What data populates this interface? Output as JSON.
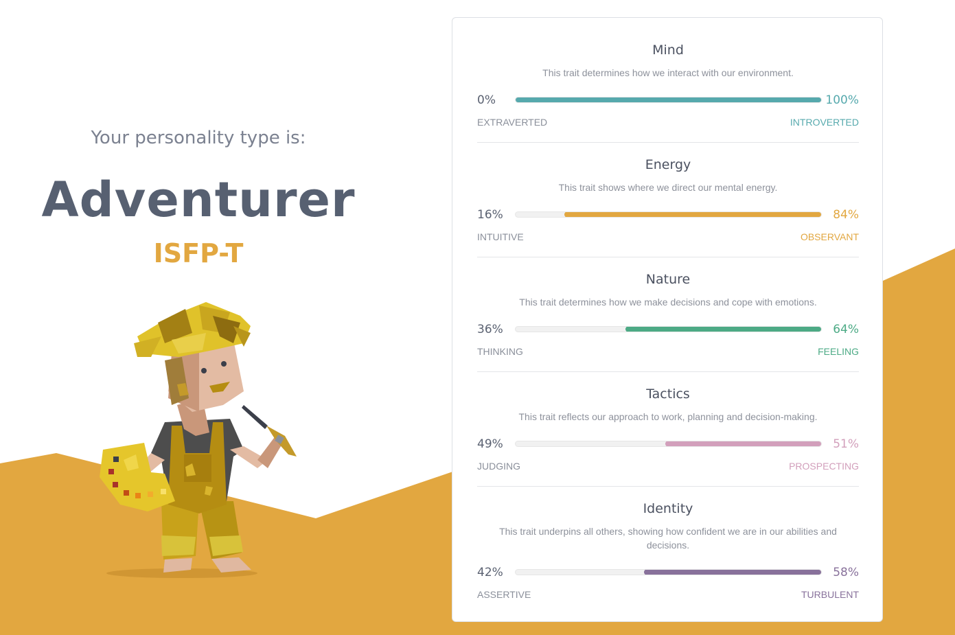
{
  "intro_text": "Your personality type is:",
  "type_name": "Adventurer",
  "type_code": "ISFP-T",
  "colors": {
    "background_accent": "#e2a740",
    "type_name": "#576071",
    "type_code": "#e2a740"
  },
  "traits": [
    {
      "title": "Mind",
      "description": "This trait determines how we interact with our environment.",
      "left_percent": "0%",
      "right_percent": "100%",
      "left_label": "EXTRAVERTED",
      "right_label": "INTROVERTED",
      "right_value": 100,
      "color": "#56a9ad"
    },
    {
      "title": "Energy",
      "description": "This trait shows where we direct our mental energy.",
      "left_percent": "16%",
      "right_percent": "84%",
      "left_label": "INTUITIVE",
      "right_label": "OBSERVANT",
      "right_value": 84,
      "color": "#e2a740"
    },
    {
      "title": "Nature",
      "description": "This trait determines how we make decisions and cope with emotions.",
      "left_percent": "36%",
      "right_percent": "64%",
      "left_label": "THINKING",
      "right_label": "FEELING",
      "right_value": 64,
      "color": "#4caa85"
    },
    {
      "title": "Tactics",
      "description": "This trait reflects our approach to work, planning and decision-making.",
      "left_percent": "49%",
      "right_percent": "51%",
      "left_label": "JUDGING",
      "right_label": "PROSPECTING",
      "right_value": 51,
      "color": "#d29fbb"
    },
    {
      "title": "Identity",
      "description": "This trait underpins all others, showing how confident we are in our abilities and decisions.",
      "left_percent": "42%",
      "right_percent": "58%",
      "left_label": "ASSERTIVE",
      "right_label": "TURBULENT",
      "right_value": 58,
      "color": "#88719b"
    }
  ]
}
